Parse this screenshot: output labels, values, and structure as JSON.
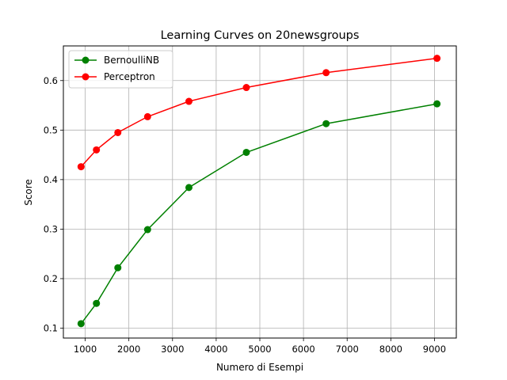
{
  "chart_data": {
    "type": "line",
    "title": "Learning Curves on 20newsgroups",
    "xlabel": "Numero di Esempi",
    "ylabel": "Score",
    "xlim": [
      500,
      9500
    ],
    "ylim": [
      0.08,
      0.67
    ],
    "xticks": [
      1000,
      2000,
      3000,
      4000,
      5000,
      6000,
      7000,
      8000,
      9000
    ],
    "yticks": [
      0.1,
      0.2,
      0.3,
      0.4,
      0.5,
      0.6
    ],
    "grid": true,
    "legend_position": "top-left",
    "series": [
      {
        "name": "BernoulliNB",
        "color": "#008000",
        "x": [
          905,
          1257,
          1748,
          2429,
          3376,
          4691,
          6518,
          9058
        ],
        "y": [
          0.109,
          0.15,
          0.222,
          0.299,
          0.384,
          0.455,
          0.513,
          0.553
        ]
      },
      {
        "name": "Perceptron",
        "color": "#ff0000",
        "x": [
          905,
          1257,
          1748,
          2429,
          3376,
          4691,
          6518,
          9058
        ],
        "y": [
          0.426,
          0.46,
          0.495,
          0.527,
          0.558,
          0.586,
          0.616,
          0.645
        ]
      }
    ]
  }
}
